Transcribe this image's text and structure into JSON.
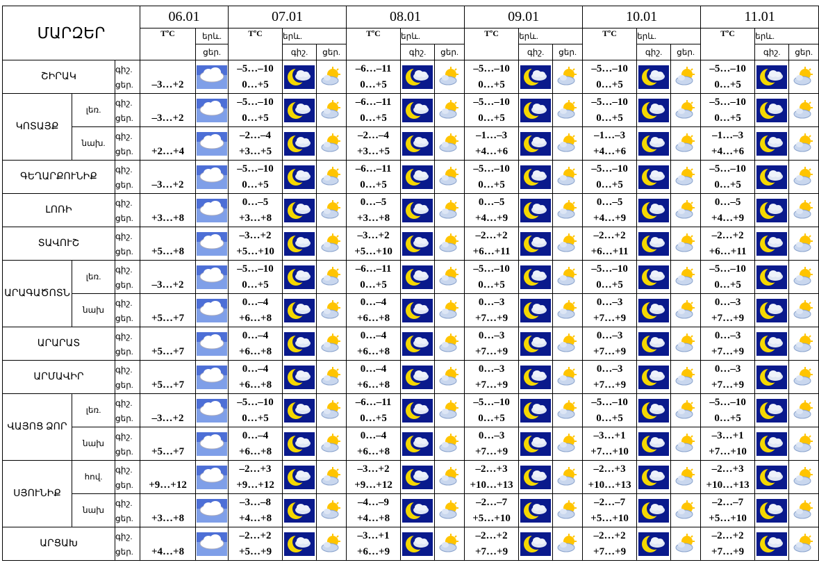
{
  "header": {
    "title": "ՄԱՐԶԵՐ",
    "dates": [
      "06.01",
      "07.01",
      "08.01",
      "09.01",
      "10.01",
      "11.01"
    ],
    "temp_label": "TºC",
    "forecast_label": "երև.",
    "night_label": "գիշ.",
    "day_label": "ցեր."
  },
  "regions": [
    {
      "name": "ՇԻՐԱԿ",
      "rows": [
        {
          "first_day": "–3…+2",
          "forecast": [
            {
              "night": "–5…–10",
              "day": "0…+5"
            },
            {
              "night": "–6…–11",
              "day": "0…+5"
            },
            {
              "night": "–5…–10",
              "day": "0…+5"
            },
            {
              "night": "–5…–10",
              "day": "0…+5"
            },
            {
              "night": "–5…–10",
              "day": "0…+5"
            }
          ]
        }
      ]
    },
    {
      "name": "ԿՈՏԱՅՔ",
      "rows": [
        {
          "zone": "լեռ.",
          "first_day": "–3…+2",
          "forecast": [
            {
              "night": "–5…–10",
              "day": "0…+5"
            },
            {
              "night": "–6…–11",
              "day": "0…+5"
            },
            {
              "night": "–5…–10",
              "day": "0…+5"
            },
            {
              "night": "–5…–10",
              "day": "0…+5"
            },
            {
              "night": "–5…–10",
              "day": "0…+5"
            }
          ]
        },
        {
          "zone": "նախ.",
          "first_day": "+2…+4",
          "forecast": [
            {
              "night": "–2…–4",
              "day": "+3…+5"
            },
            {
              "night": "–2…–4",
              "day": "+3…+5"
            },
            {
              "night": "–1…–3",
              "day": "+4…+6"
            },
            {
              "night": "–1…–3",
              "day": "+4…+6"
            },
            {
              "night": "–1…–3",
              "day": "+4…+6"
            }
          ]
        }
      ]
    },
    {
      "name": "ԳԵՂԱՐՔՈՒՆԻՔ",
      "rows": [
        {
          "first_day": "–3…+2",
          "forecast": [
            {
              "night": "–5…–10",
              "day": "0…+5"
            },
            {
              "night": "–6…–11",
              "day": "0…+5"
            },
            {
              "night": "–5…–10",
              "day": "0…+5"
            },
            {
              "night": "–5…–10",
              "day": "0…+5"
            },
            {
              "night": "–5…–10",
              "day": "0…+5"
            }
          ]
        }
      ]
    },
    {
      "name": "ԼՈՌԻ",
      "rows": [
        {
          "first_day": "+3…+8",
          "forecast": [
            {
              "night": "0…–5",
              "day": "+3…+8"
            },
            {
              "night": "0…–5",
              "day": "+3…+8"
            },
            {
              "night": "0…–5",
              "day": "+4…+9"
            },
            {
              "night": "0…–5",
              "day": "+4…+9"
            },
            {
              "night": "0…–5",
              "day": "+4…+9"
            }
          ]
        }
      ]
    },
    {
      "name": "ՏԱՎՈՒՇ",
      "rows": [
        {
          "first_day": "+5…+8",
          "forecast": [
            {
              "night": "–3…+2",
              "day": "+5…+10"
            },
            {
              "night": "–3…+2",
              "day": "+5…+10"
            },
            {
              "night": "–2…+2",
              "day": "+6…+11"
            },
            {
              "night": "–2…+2",
              "day": "+6…+11"
            },
            {
              "night": "–2…+2",
              "day": "+6…+11"
            }
          ]
        }
      ]
    },
    {
      "name": "ԱՐԱԳԱԾՈՏՆ",
      "rows": [
        {
          "zone": "լեռ.",
          "first_day": "–3…+2",
          "forecast": [
            {
              "night": "–5…–10",
              "day": "0…+5"
            },
            {
              "night": "–6…–11",
              "day": "0…+5"
            },
            {
              "night": "–5…–10",
              "day": "0…+5"
            },
            {
              "night": "–5…–10",
              "day": "0…+5"
            },
            {
              "night": "–5…–10",
              "day": "0…+5"
            }
          ]
        },
        {
          "zone": "նախ",
          "first_day": "+5…+7",
          "forecast": [
            {
              "night": "0…–4",
              "day": "+6…+8"
            },
            {
              "night": "0…–4",
              "day": "+6…+8"
            },
            {
              "night": "0…–3",
              "day": "+7…+9"
            },
            {
              "night": "0…–3",
              "day": "+7…+9"
            },
            {
              "night": "0…–3",
              "day": "+7…+9"
            }
          ]
        }
      ]
    },
    {
      "name": "ԱՐԱՐԱՏ",
      "rows": [
        {
          "first_day": "+5…+7",
          "forecast": [
            {
              "night": "0…–4",
              "day": "+6…+8"
            },
            {
              "night": "0…–4",
              "day": "+6…+8"
            },
            {
              "night": "0…–3",
              "day": "+7…+9"
            },
            {
              "night": "0…–3",
              "day": "+7…+9"
            },
            {
              "night": "0…–3",
              "day": "+7…+9"
            }
          ]
        }
      ]
    },
    {
      "name": "ԱՐՄԱՎԻՐ",
      "rows": [
        {
          "first_day": "+5…+7",
          "forecast": [
            {
              "night": "0…–4",
              "day": "+6…+8"
            },
            {
              "night": "0…–4",
              "day": "+6…+8"
            },
            {
              "night": "0…–3",
              "day": "+7…+9"
            },
            {
              "night": "0…–3",
              "day": "+7…+9"
            },
            {
              "night": "0…–3",
              "day": "+7…+9"
            }
          ]
        }
      ]
    },
    {
      "name": "ՎԱՅՈՑ ՁՈՐ",
      "rows": [
        {
          "zone": "լեռ.",
          "first_day": "–3…+2",
          "forecast": [
            {
              "night": "–5…–10",
              "day": "0…+5"
            },
            {
              "night": "–6…–11",
              "day": "0…+5"
            },
            {
              "night": "–5…–10",
              "day": "0…+5"
            },
            {
              "night": "–5…–10",
              "day": "0…+5"
            },
            {
              "night": "–5…–10",
              "day": "0…+5"
            }
          ]
        },
        {
          "zone": "նախ",
          "first_day": "+5…+7",
          "forecast": [
            {
              "night": "0…–4",
              "day": "+6…+8"
            },
            {
              "night": "0…–4",
              "day": "+6…+8"
            },
            {
              "night": "0…–3",
              "day": "+7…+9"
            },
            {
              "night": "–3…+1",
              "day": "+7…+10"
            },
            {
              "night": "–3…+1",
              "day": "+7…+10"
            }
          ]
        }
      ]
    },
    {
      "name": "ՍՅՈՒՆԻՔ",
      "rows": [
        {
          "zone": "հով.",
          "first_day": "+9…+12",
          "forecast": [
            {
              "night": "–2…+3",
              "day": "+9…+12"
            },
            {
              "night": "–3…+2",
              "day": "+9…+12"
            },
            {
              "night": "–2…+3",
              "day": "+10…+13"
            },
            {
              "night": "–2…+3",
              "day": "+10…+13"
            },
            {
              "night": "–2…+3",
              "day": "+10…+13"
            }
          ]
        },
        {
          "zone": "նախ",
          "first_day": "+3…+8",
          "forecast": [
            {
              "night": "–3…–8",
              "day": "+4…+8"
            },
            {
              "night": "–4…–9",
              "day": "+4…+8"
            },
            {
              "night": "–2…–7",
              "day": "+5…+10"
            },
            {
              "night": "–2…–7",
              "day": "+5…+10"
            },
            {
              "night": "–2…–7",
              "day": "+5…+10"
            }
          ]
        }
      ]
    },
    {
      "name": "ԱՐՑԱԽ",
      "rows": [
        {
          "first_day": "+4…+8",
          "forecast": [
            {
              "night": "–2…+2",
              "day": "+5…+9"
            },
            {
              "night": "–3…+1",
              "day": "+6…+9"
            },
            {
              "night": "–2…+2",
              "day": "+7…+9"
            },
            {
              "night": "–2…+2",
              "day": "+7…+9"
            },
            {
              "night": "–2…+2",
              "day": "+7…+9"
            }
          ]
        }
      ]
    }
  ]
}
